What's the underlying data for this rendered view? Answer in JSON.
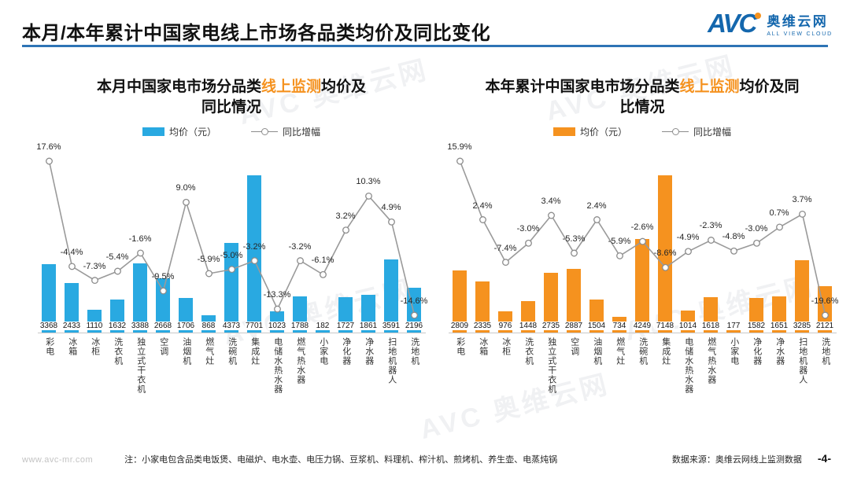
{
  "header": {
    "title": "本月/本年累计中国家电线上市场各品类均价及同比变化",
    "logo": {
      "abbr": "AVC",
      "name_cn": "奥维云网",
      "name_en": "ALL VIEW CLOUD"
    }
  },
  "decor": {
    "watermark": "AVC 奥维云网"
  },
  "colors": {
    "blue": "#29a9e1",
    "orange": "#f5921f",
    "line": "#9a9a9a",
    "marker_stroke": "#8c8c8c",
    "accent_rule": "#2e74b5",
    "title_highlight": "#f5921f"
  },
  "footer": {
    "website": "www.avc-mr.com",
    "note": "注：小家电包含品类电饭煲、电磁炉、电水壶、电压力锅、豆浆机、料理机、榨汁机、煎烤机、养生壶、电蒸炖锅",
    "source": "数据来源：奥维云网线上监测数据",
    "page": "-4-"
  },
  "chart_data": [
    {
      "type": "combo-bar-line",
      "title": "本月中国家电市场分品类线上监测均价及同比情况",
      "title_lines": [
        [
          {
            "text": "本月中国家电市场分品类",
            "highlight": false
          },
          {
            "text": "线上监测",
            "highlight": true
          },
          {
            "text": "均价及",
            "highlight": false
          }
        ],
        [
          {
            "text": "同比情况",
            "highlight": false
          }
        ]
      ],
      "legend": [
        "均价（元）",
        "同比增幅"
      ],
      "legend_position": "top",
      "bar_color": "#29a9e1",
      "categories": [
        "彩电",
        "冰箱",
        "冰柜",
        "洗衣机",
        "独立式干衣机",
        "空调",
        "油烟机",
        "燃气灶",
        "洗碗机",
        "集成灶",
        "电储水热水器",
        "燃气热水器",
        "小家电",
        "净化器",
        "净水器",
        "扫地机器人",
        "洗地机"
      ],
      "series": [
        {
          "name": "均价（元）",
          "type": "bar",
          "unit": "元",
          "values": [
            3368,
            2433,
            1110,
            1632,
            3388,
            2668,
            1706,
            868,
            4373,
            7701,
            1023,
            1788,
            182,
            1727,
            1861,
            3591,
            2196
          ]
        },
        {
          "name": "同比增幅",
          "type": "line",
          "unit": "%",
          "values": [
            17.6,
            -4.4,
            -7.3,
            -5.4,
            -1.6,
            -9.5,
            9.0,
            -5.9,
            -5.0,
            -3.2,
            -13.3,
            -3.2,
            -6.1,
            3.2,
            10.3,
            4.9,
            -14.6
          ]
        }
      ]
    },
    {
      "type": "combo-bar-line",
      "title": "本年累计中国家电市场分品类线上监测均价及同比情况",
      "title_lines": [
        [
          {
            "text": "本年累计中国家电市场分品类",
            "highlight": false
          },
          {
            "text": "线上监测",
            "highlight": true
          },
          {
            "text": "均价及同",
            "highlight": false
          }
        ],
        [
          {
            "text": "比情况",
            "highlight": false
          }
        ]
      ],
      "legend": [
        "均价（元）",
        "同比增幅"
      ],
      "legend_position": "top",
      "bar_color": "#f5921f",
      "categories": [
        "彩电",
        "冰箱",
        "冰柜",
        "洗衣机",
        "独立式干衣机",
        "空调",
        "油烟机",
        "燃气灶",
        "洗碗机",
        "集成灶",
        "电储水热水器",
        "燃气热水器",
        "小家电",
        "净化器",
        "净水器",
        "扫地机器人",
        "洗地机"
      ],
      "series": [
        {
          "name": "均价（元）",
          "type": "bar",
          "unit": "元",
          "values": [
            2809,
            2335,
            976,
            1448,
            2735,
            2887,
            1504,
            734,
            4249,
            7148,
            1014,
            1618,
            177,
            1582,
            1651,
            3285,
            2121
          ]
        },
        {
          "name": "同比增幅",
          "type": "line",
          "unit": "%",
          "values": [
            15.9,
            2.4,
            -7.4,
            -3.0,
            3.4,
            -5.3,
            2.4,
            -5.9,
            -2.6,
            -8.6,
            -4.9,
            -2.3,
            -4.8,
            -3.0,
            0.7,
            3.7,
            -19.6
          ]
        }
      ]
    }
  ]
}
